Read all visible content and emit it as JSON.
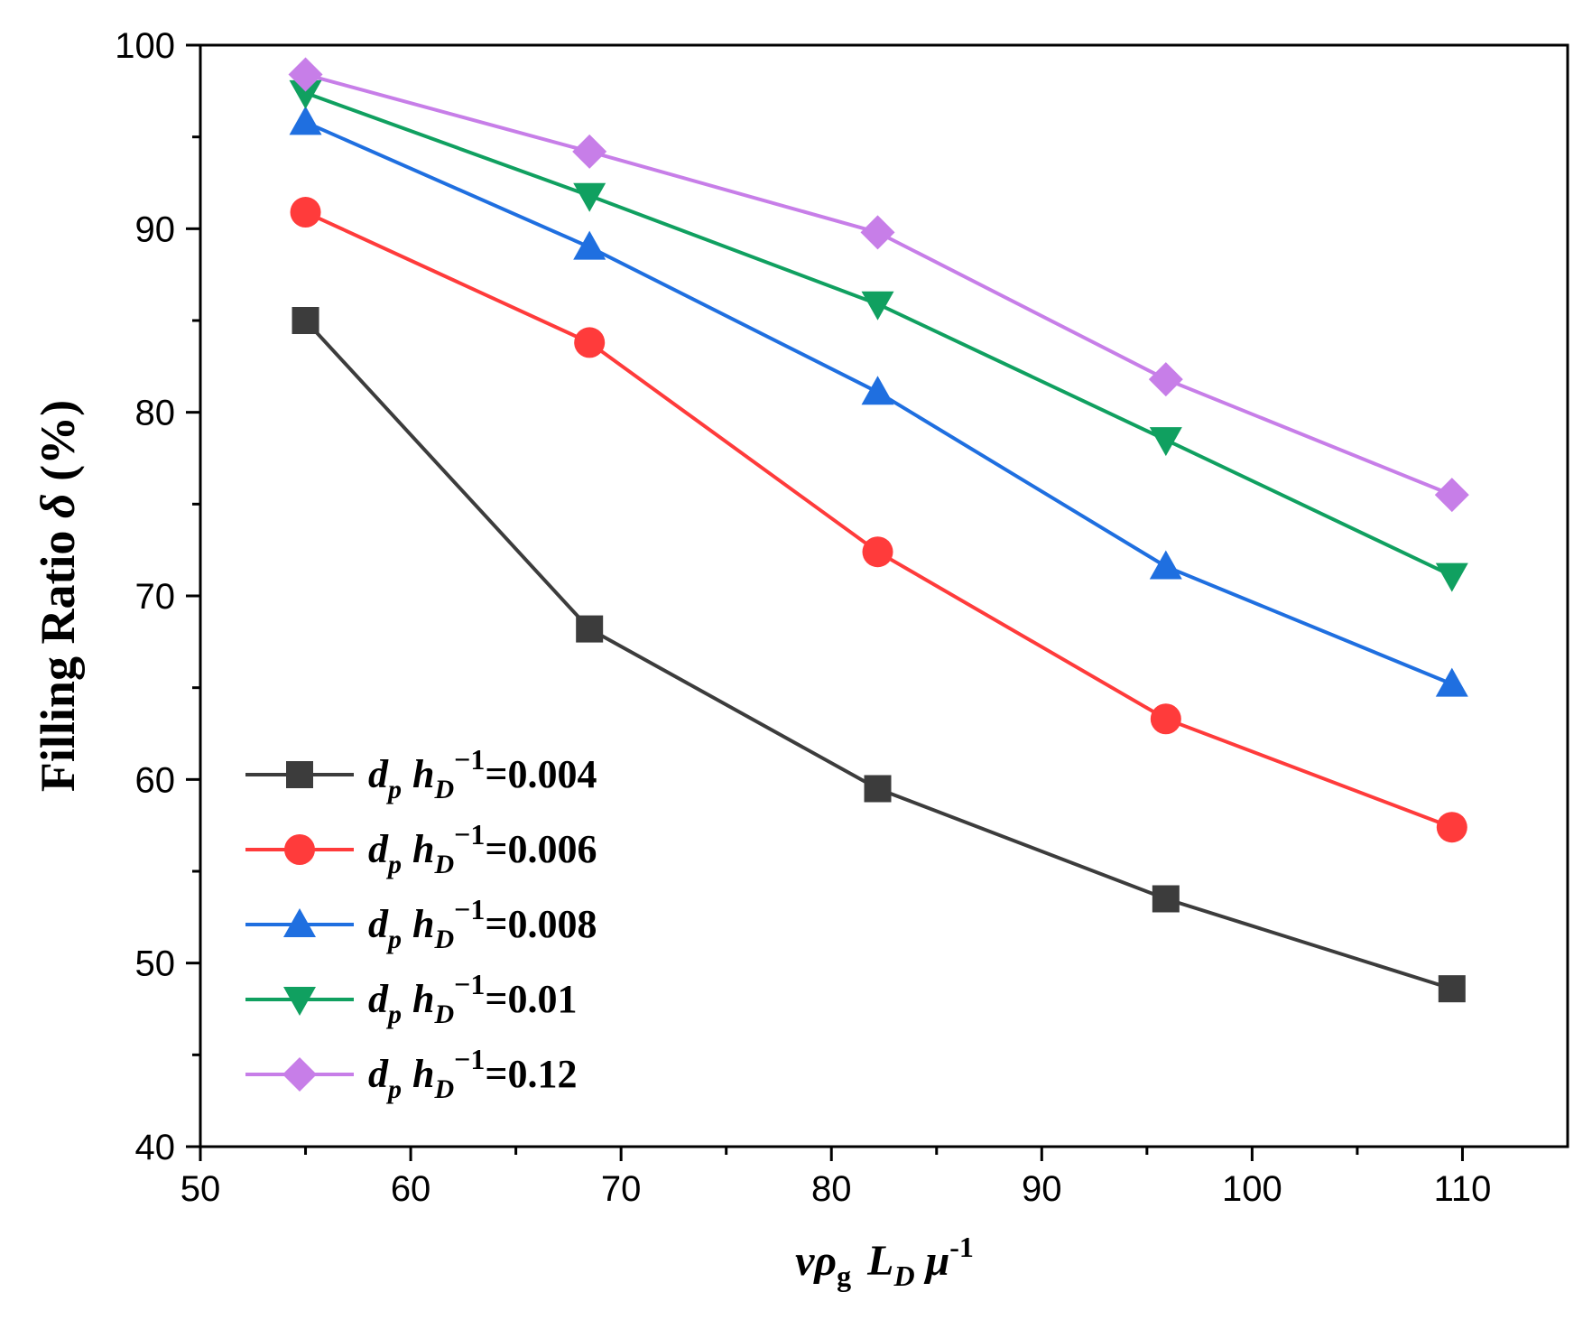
{
  "chart_data": {
    "type": "line",
    "title": "",
    "xlabel": {
      "v": "v",
      "rho": "ρ",
      "g": "g",
      "L": "L",
      "D": "D",
      "mu": "μ",
      "exp": "-1"
    },
    "ylabel": {
      "text": "Filling Ratio ",
      "delta": "δ",
      "unit": " (%)"
    },
    "xlim": [
      50,
      115
    ],
    "ylim": [
      40,
      100
    ],
    "x_ticks": [
      50,
      60,
      70,
      80,
      90,
      100,
      110
    ],
    "y_ticks": [
      40,
      50,
      60,
      70,
      80,
      90,
      100
    ],
    "x_tick_labels": [
      "50",
      "60",
      "70",
      "80",
      "90",
      "100",
      "110"
    ],
    "y_tick_labels": [
      "40",
      "50",
      "60",
      "70",
      "80",
      "90",
      "100"
    ],
    "x": [
      55,
      68.5,
      82.2,
      95.9,
      109.5
    ],
    "legend_position": "bottom-left",
    "series": [
      {
        "name": "dp hD−1=0.004",
        "legend_value": "=0.004",
        "color": "#3c3c3c",
        "marker": "square",
        "values": [
          85.0,
          68.2,
          59.5,
          53.5,
          48.6
        ]
      },
      {
        "name": "dp hD−1=0.006",
        "legend_value": "=0.006",
        "color": "#ff3b3b",
        "marker": "circle",
        "values": [
          90.9,
          83.8,
          72.4,
          63.3,
          57.4
        ]
      },
      {
        "name": "dp hD−1=0.008",
        "legend_value": "=0.008",
        "color": "#1f6fe0",
        "marker": "triangle-up",
        "values": [
          95.8,
          89.0,
          81.1,
          71.6,
          65.2
        ]
      },
      {
        "name": "dp hD−1=0.01",
        "legend_value": "=0.01",
        "color": "#10a060",
        "marker": "triangle-down",
        "values": [
          97.4,
          91.8,
          85.9,
          78.5,
          71.1
        ]
      },
      {
        "name": "dp hD−1=0.12",
        "legend_value": "=0.12",
        "color": "#c77ee8",
        "marker": "diamond",
        "values": [
          98.4,
          94.2,
          89.8,
          81.8,
          75.5
        ]
      }
    ],
    "legend_prefix": {
      "d": "d",
      "p": "p",
      "h": "h",
      "D": "D",
      "exp": "−1"
    }
  }
}
